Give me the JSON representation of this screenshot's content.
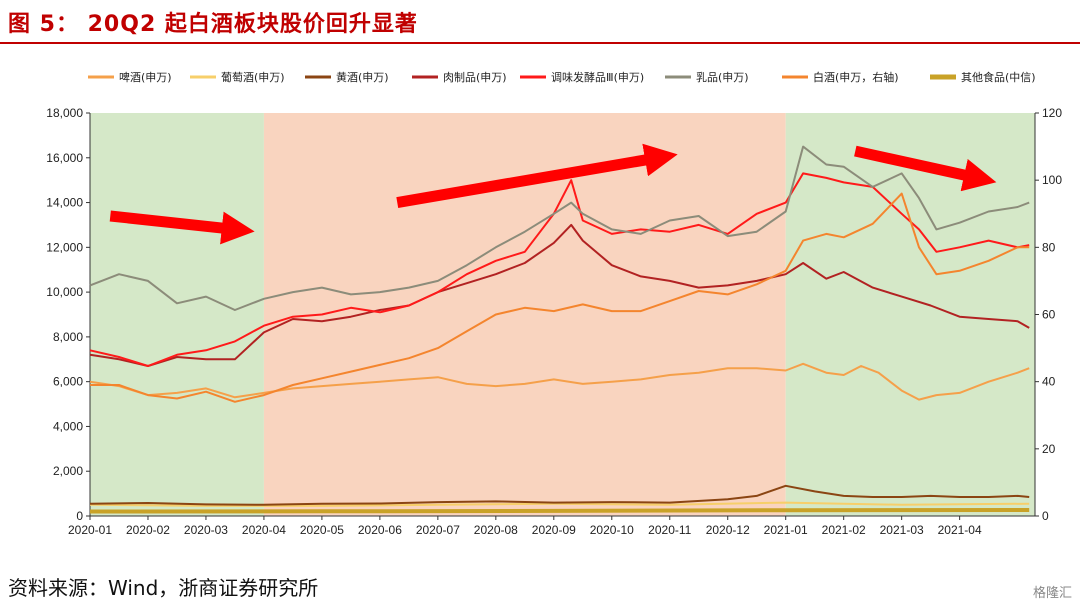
{
  "figure": {
    "title": "图 5： 20Q2 起白酒板块股价回升显著",
    "source": "资料来源：Wind，浙商证券研究所",
    "watermark": "格隆汇"
  },
  "chart_data": {
    "type": "line",
    "title": "",
    "xlabel": "",
    "ylabel": "",
    "x_ticks": [
      "2020-01",
      "2020-02",
      "2020-03",
      "2020-04",
      "2020-05",
      "2020-06",
      "2020-07",
      "2020-08",
      "2020-09",
      "2020-10",
      "2020-11",
      "2020-12",
      "2021-01",
      "2021-02",
      "2021-03",
      "2021-04"
    ],
    "x_range": [
      0,
      16.3
    ],
    "y_left": {
      "range": [
        0,
        18000
      ],
      "ticks": [
        "0",
        "2,000",
        "4,000",
        "6,000",
        "8,000",
        "10,000",
        "12,000",
        "14,000",
        "16,000",
        "18,000"
      ]
    },
    "y_right": {
      "range": [
        0,
        120
      ],
      "ticks": [
        "0",
        "20",
        "40",
        "60",
        "80",
        "100",
        "120"
      ]
    },
    "grid": false,
    "legend_position": "top",
    "shaded_regions": [
      {
        "from": 0,
        "to": 3,
        "color": "#d5e8c8"
      },
      {
        "from": 3,
        "to": 12,
        "color": "#f9d4bf"
      },
      {
        "from": 12,
        "to": 16.3,
        "color": "#d5e8c8"
      }
    ],
    "arrows": [
      {
        "from": [
          0.35,
          13400
        ],
        "to": [
          2.5,
          12800
        ],
        "color": "#ff0000"
      },
      {
        "from": [
          5.3,
          14000
        ],
        "to": [
          9.8,
          16000
        ],
        "color": "#ff0000"
      },
      {
        "from": [
          13.2,
          16300
        ],
        "to": [
          15.3,
          15100
        ],
        "color": "#ff0000"
      }
    ],
    "series": [
      {
        "name": "啤酒(申万)",
        "axis": "left",
        "color": "#f5a04a",
        "width": 2,
        "points": [
          [
            0,
            6000
          ],
          [
            0.5,
            5800
          ],
          [
            1,
            5400
          ],
          [
            1.5,
            5500
          ],
          [
            2,
            5700
          ],
          [
            2.5,
            5300
          ],
          [
            3,
            5500
          ],
          [
            3.5,
            5700
          ],
          [
            4,
            5800
          ],
          [
            4.5,
            5900
          ],
          [
            5,
            6000
          ],
          [
            5.5,
            6100
          ],
          [
            6,
            6200
          ],
          [
            6.5,
            5900
          ],
          [
            7,
            5800
          ],
          [
            7.5,
            5900
          ],
          [
            8,
            6100
          ],
          [
            8.5,
            5900
          ],
          [
            9,
            6000
          ],
          [
            9.5,
            6100
          ],
          [
            10,
            6300
          ],
          [
            10.5,
            6400
          ],
          [
            11,
            6600
          ],
          [
            11.5,
            6600
          ],
          [
            12,
            6500
          ],
          [
            12.3,
            6800
          ],
          [
            12.7,
            6400
          ],
          [
            13,
            6300
          ],
          [
            13.3,
            6700
          ],
          [
            13.6,
            6400
          ],
          [
            14,
            5600
          ],
          [
            14.3,
            5200
          ],
          [
            14.6,
            5400
          ],
          [
            15,
            5500
          ],
          [
            15.5,
            6000
          ],
          [
            16,
            6400
          ],
          [
            16.2,
            6600
          ]
        ]
      },
      {
        "name": "葡萄酒(申万)",
        "axis": "left",
        "color": "#f7cf6a",
        "width": 2,
        "points": [
          [
            0,
            500
          ],
          [
            2,
            450
          ],
          [
            4,
            450
          ],
          [
            6,
            500
          ],
          [
            8,
            550
          ],
          [
            10,
            500
          ],
          [
            12,
            600
          ],
          [
            13,
            550
          ],
          [
            14,
            500
          ],
          [
            16.2,
            550
          ]
        ]
      },
      {
        "name": "黄酒(申万)",
        "axis": "left",
        "color": "#8b4513",
        "width": 2,
        "points": [
          [
            0,
            550
          ],
          [
            1,
            580
          ],
          [
            2,
            520
          ],
          [
            3,
            500
          ],
          [
            4,
            550
          ],
          [
            5,
            560
          ],
          [
            6,
            620
          ],
          [
            7,
            650
          ],
          [
            8,
            600
          ],
          [
            9,
            620
          ],
          [
            10,
            600
          ],
          [
            11,
            750
          ],
          [
            11.5,
            900
          ],
          [
            12,
            1350
          ],
          [
            12.5,
            1100
          ],
          [
            13,
            900
          ],
          [
            13.5,
            850
          ],
          [
            14,
            850
          ],
          [
            14.5,
            900
          ],
          [
            15,
            850
          ],
          [
            15.5,
            850
          ],
          [
            16,
            900
          ],
          [
            16.2,
            850
          ]
        ]
      },
      {
        "name": "肉制品(申万)",
        "axis": "left",
        "color": "#b22222",
        "width": 2,
        "points": [
          [
            0,
            7200
          ],
          [
            0.5,
            7000
          ],
          [
            1,
            6700
          ],
          [
            1.5,
            7100
          ],
          [
            2,
            7000
          ],
          [
            2.5,
            7000
          ],
          [
            3,
            8200
          ],
          [
            3.5,
            8800
          ],
          [
            4,
            8700
          ],
          [
            4.5,
            8900
          ],
          [
            5,
            9200
          ],
          [
            5.5,
            9400
          ],
          [
            6,
            10000
          ],
          [
            6.5,
            10400
          ],
          [
            7,
            10800
          ],
          [
            7.5,
            11300
          ],
          [
            8,
            12200
          ],
          [
            8.3,
            13000
          ],
          [
            8.5,
            12300
          ],
          [
            9,
            11200
          ],
          [
            9.5,
            10700
          ],
          [
            10,
            10500
          ],
          [
            10.5,
            10200
          ],
          [
            11,
            10300
          ],
          [
            11.5,
            10500
          ],
          [
            12,
            10800
          ],
          [
            12.3,
            11300
          ],
          [
            12.7,
            10600
          ],
          [
            13,
            10900
          ],
          [
            13.5,
            10200
          ],
          [
            14,
            9800
          ],
          [
            14.5,
            9400
          ],
          [
            15,
            8900
          ],
          [
            15.5,
            8800
          ],
          [
            16,
            8700
          ],
          [
            16.2,
            8400
          ]
        ]
      },
      {
        "name": "调味发酵品Ⅲ(申万)",
        "axis": "left",
        "color": "#ff1a1a",
        "width": 2,
        "points": [
          [
            0,
            7400
          ],
          [
            0.5,
            7100
          ],
          [
            1,
            6700
          ],
          [
            1.5,
            7200
          ],
          [
            2,
            7400
          ],
          [
            2.5,
            7800
          ],
          [
            3,
            8500
          ],
          [
            3.5,
            8900
          ],
          [
            4,
            9000
          ],
          [
            4.5,
            9300
          ],
          [
            5,
            9100
          ],
          [
            5.5,
            9400
          ],
          [
            6,
            10000
          ],
          [
            6.5,
            10800
          ],
          [
            7,
            11400
          ],
          [
            7.5,
            11800
          ],
          [
            8,
            13500
          ],
          [
            8.3,
            15000
          ],
          [
            8.5,
            13200
          ],
          [
            9,
            12600
          ],
          [
            9.5,
            12800
          ],
          [
            10,
            12700
          ],
          [
            10.5,
            13000
          ],
          [
            11,
            12600
          ],
          [
            11.5,
            13500
          ],
          [
            12,
            14000
          ],
          [
            12.3,
            15300
          ],
          [
            12.7,
            15100
          ],
          [
            13,
            14900
          ],
          [
            13.5,
            14700
          ],
          [
            14,
            13500
          ],
          [
            14.3,
            12800
          ],
          [
            14.6,
            11800
          ],
          [
            15,
            12000
          ],
          [
            15.5,
            12300
          ],
          [
            16,
            12000
          ],
          [
            16.2,
            12100
          ]
        ]
      },
      {
        "name": "乳品(申万)",
        "axis": "left",
        "color": "#8c8c7a",
        "width": 2,
        "points": [
          [
            0,
            10300
          ],
          [
            0.5,
            10800
          ],
          [
            1,
            10500
          ],
          [
            1.5,
            9500
          ],
          [
            2,
            9800
          ],
          [
            2.5,
            9200
          ],
          [
            3,
            9700
          ],
          [
            3.5,
            10000
          ],
          [
            4,
            10200
          ],
          [
            4.5,
            9900
          ],
          [
            5,
            10000
          ],
          [
            5.5,
            10200
          ],
          [
            6,
            10500
          ],
          [
            6.5,
            11200
          ],
          [
            7,
            12000
          ],
          [
            7.5,
            12700
          ],
          [
            8,
            13500
          ],
          [
            8.3,
            14000
          ],
          [
            8.5,
            13500
          ],
          [
            9,
            12800
          ],
          [
            9.5,
            12600
          ],
          [
            10,
            13200
          ],
          [
            10.5,
            13400
          ],
          [
            11,
            12500
          ],
          [
            11.5,
            12700
          ],
          [
            12,
            13600
          ],
          [
            12.3,
            16500
          ],
          [
            12.7,
            15700
          ],
          [
            13,
            15600
          ],
          [
            13.5,
            14700
          ],
          [
            14,
            15300
          ],
          [
            14.3,
            14200
          ],
          [
            14.6,
            12800
          ],
          [
            15,
            13100
          ],
          [
            15.5,
            13600
          ],
          [
            16,
            13800
          ],
          [
            16.2,
            14000
          ]
        ]
      },
      {
        "name": "白酒(申万，右轴)",
        "axis": "right",
        "color": "#f4852e",
        "width": 2,
        "points": [
          [
            0,
            39
          ],
          [
            0.5,
            39
          ],
          [
            1,
            36
          ],
          [
            1.5,
            35
          ],
          [
            2,
            37
          ],
          [
            2.5,
            34
          ],
          [
            3,
            36
          ],
          [
            3.5,
            39
          ],
          [
            4,
            41
          ],
          [
            4.5,
            43
          ],
          [
            5,
            45
          ],
          [
            5.5,
            47
          ],
          [
            6,
            50
          ],
          [
            6.5,
            55
          ],
          [
            7,
            60
          ],
          [
            7.5,
            62
          ],
          [
            8,
            61
          ],
          [
            8.5,
            63
          ],
          [
            9,
            61
          ],
          [
            9.5,
            61
          ],
          [
            10,
            64
          ],
          [
            10.5,
            67
          ],
          [
            11,
            66
          ],
          [
            11.5,
            69
          ],
          [
            12,
            73
          ],
          [
            12.3,
            82
          ],
          [
            12.7,
            84
          ],
          [
            13,
            83
          ],
          [
            13.5,
            87
          ],
          [
            14,
            96
          ],
          [
            14.3,
            80
          ],
          [
            14.6,
            72
          ],
          [
            15,
            73
          ],
          [
            15.5,
            76
          ],
          [
            16,
            80
          ],
          [
            16.2,
            80
          ]
        ]
      },
      {
        "name": "其他食品(中信)",
        "axis": "left",
        "color": "#c9a227",
        "width": 4,
        "points": [
          [
            0,
            200
          ],
          [
            4,
            210
          ],
          [
            8,
            230
          ],
          [
            12,
            260
          ],
          [
            16.2,
            270
          ]
        ]
      }
    ]
  }
}
